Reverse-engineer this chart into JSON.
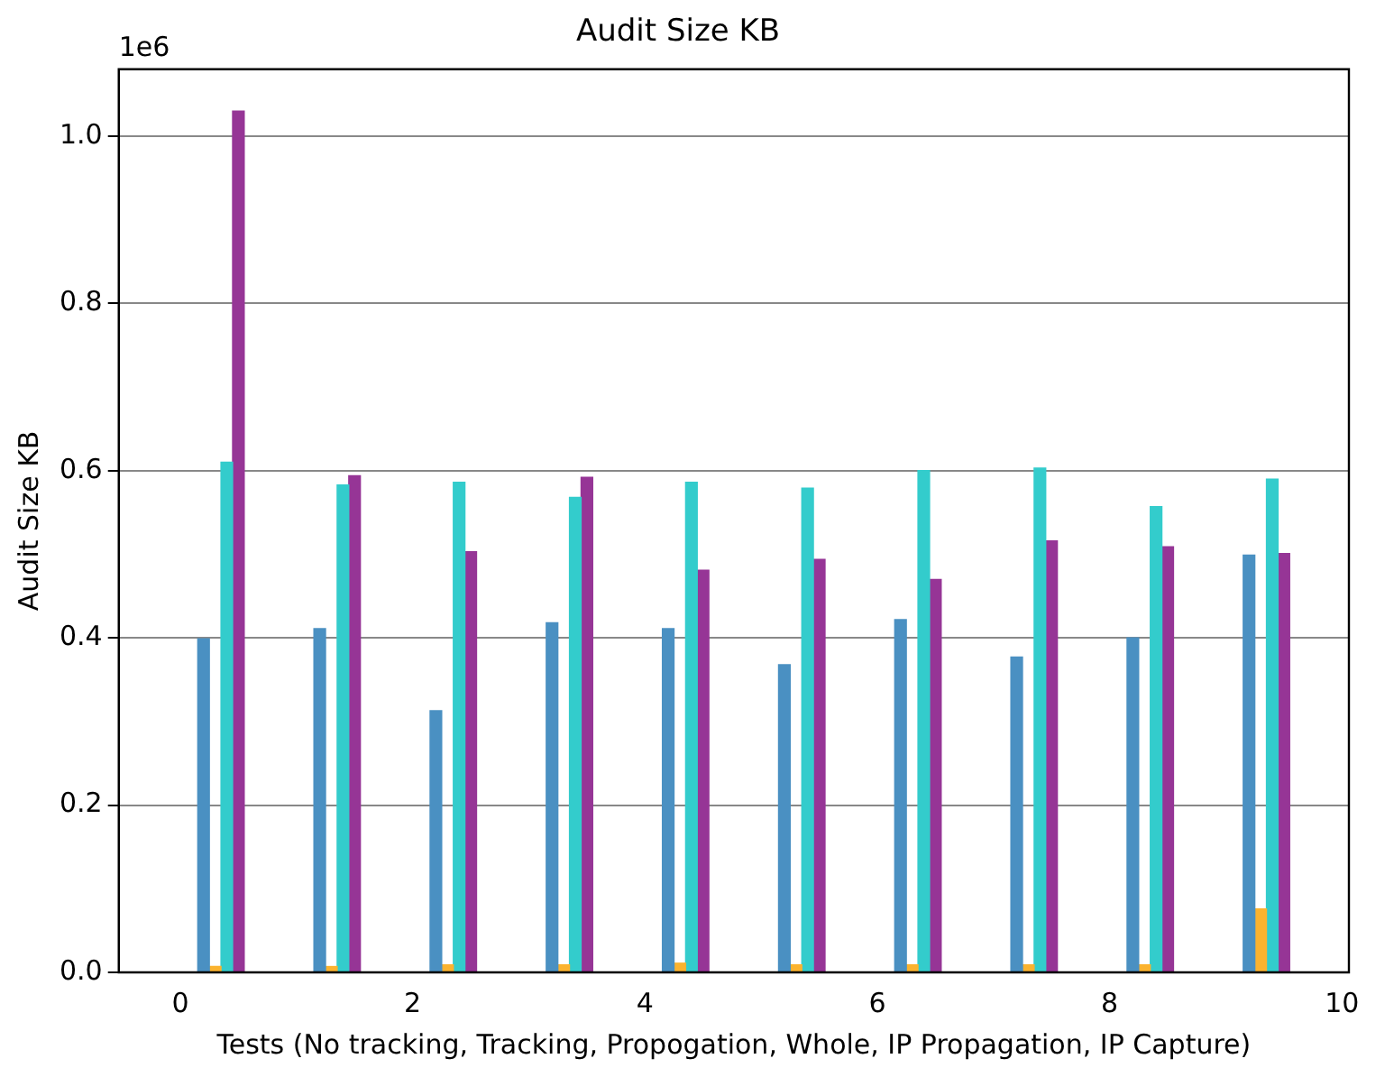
{
  "chart_data": {
    "type": "bar",
    "title": "Audit Size KB",
    "xlabel": "Tests (No tracking, Tracking, Propogation, Whole, IP Propagation, IP Capture)",
    "ylabel": "Audit Size KB",
    "annotations": [
      "1e6"
    ],
    "series": [
      {
        "color": "#4a90c2",
        "x": [
          0.2,
          1.2,
          2.2,
          3.2,
          4.2,
          5.2,
          6.2,
          7.2,
          8.2,
          9.2
        ],
        "values": [
          0.399,
          0.411,
          0.313,
          0.418,
          0.411,
          0.368,
          0.422,
          0.377,
          0.4,
          0.499
        ]
      },
      {
        "color": "#fbb32f",
        "x": [
          0.3,
          1.3,
          2.3,
          3.3,
          4.3,
          5.3,
          6.3,
          7.3,
          8.3,
          9.3
        ],
        "values": [
          0.007,
          0.007,
          0.009,
          0.009,
          0.011,
          0.009,
          0.009,
          0.009,
          0.009,
          0.076
        ]
      },
      {
        "color": "#33cccc",
        "x": [
          0.4,
          1.4,
          2.4,
          3.4,
          4.4,
          5.4,
          6.4,
          7.4,
          8.4,
          9.4
        ],
        "values": [
          0.61,
          0.583,
          0.586,
          0.568,
          0.586,
          0.579,
          0.6,
          0.603,
          0.557,
          0.59
        ]
      },
      {
        "color": "#963596",
        "x": [
          0.5,
          1.5,
          2.5,
          3.5,
          4.5,
          5.5,
          6.5,
          7.5,
          8.5,
          9.5
        ],
        "values": [
          1.03,
          0.594,
          0.503,
          0.592,
          0.481,
          0.494,
          0.47,
          0.516,
          0.509,
          0.501
        ]
      }
    ],
    "xlim": [
      -0.53,
      10.06
    ],
    "xticks": [
      0,
      2,
      4,
      6,
      8,
      10
    ],
    "ylim": [
      0,
      1.08
    ],
    "yticks": [
      {
        "value": 0,
        "label": "0.0"
      },
      0.2,
      0.4,
      0.6,
      0.8,
      {
        "value": 1,
        "label": "1.0"
      }
    ],
    "grid": "y"
  }
}
